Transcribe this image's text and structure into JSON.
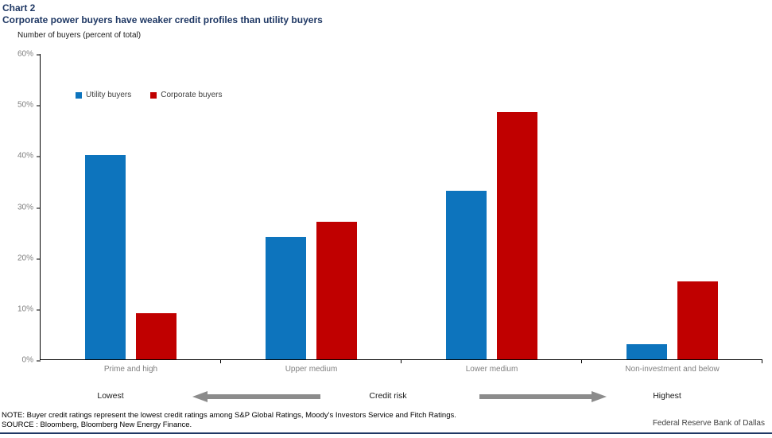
{
  "header": {
    "chart_label": "Chart 2",
    "title": "Corporate power buyers have weaker credit profiles than utility buyers"
  },
  "chart_data": {
    "type": "bar",
    "title": "Corporate power buyers have weaker credit profiles than utility buyers",
    "ylabel": "Number of buyers (percent of total)",
    "ylim": [
      0,
      60
    ],
    "ytick_step": 10,
    "ytick_suffix": "%",
    "grid": false,
    "legend_position": "top-left",
    "categories": [
      "Prime and high",
      "Upper medium",
      "Lower medium",
      "Non-investment and below"
    ],
    "series": [
      {
        "name": "Utility buyers",
        "color": "#0d74bd",
        "values": [
          40,
          24,
          33,
          3
        ]
      },
      {
        "name": "Corporate buyers",
        "color": "#c00000",
        "values": [
          9,
          27,
          48.5,
          15.3
        ]
      }
    ]
  },
  "credit_risk_scale": {
    "low_label": "Lowest",
    "center_label": "Credit risk",
    "high_label": "Highest"
  },
  "footer": {
    "note": "NOTE: Buyer credit ratings represent the lowest credit ratings among S&P Global Ratings, Moody's Investors Service and Fitch Ratings.",
    "source": "SOURCE : Bloomberg, Bloomberg New Energy Finance.",
    "attribution": "Federal Reserve Bank of Dallas"
  },
  "colors": {
    "title": "#1f3864",
    "utility_bar": "#0d74bd",
    "corporate_bar": "#c00000",
    "axis_tick_label": "#7f7f7f",
    "arrow": "#8c8c8c",
    "bottom_rule": "#1f3864"
  }
}
